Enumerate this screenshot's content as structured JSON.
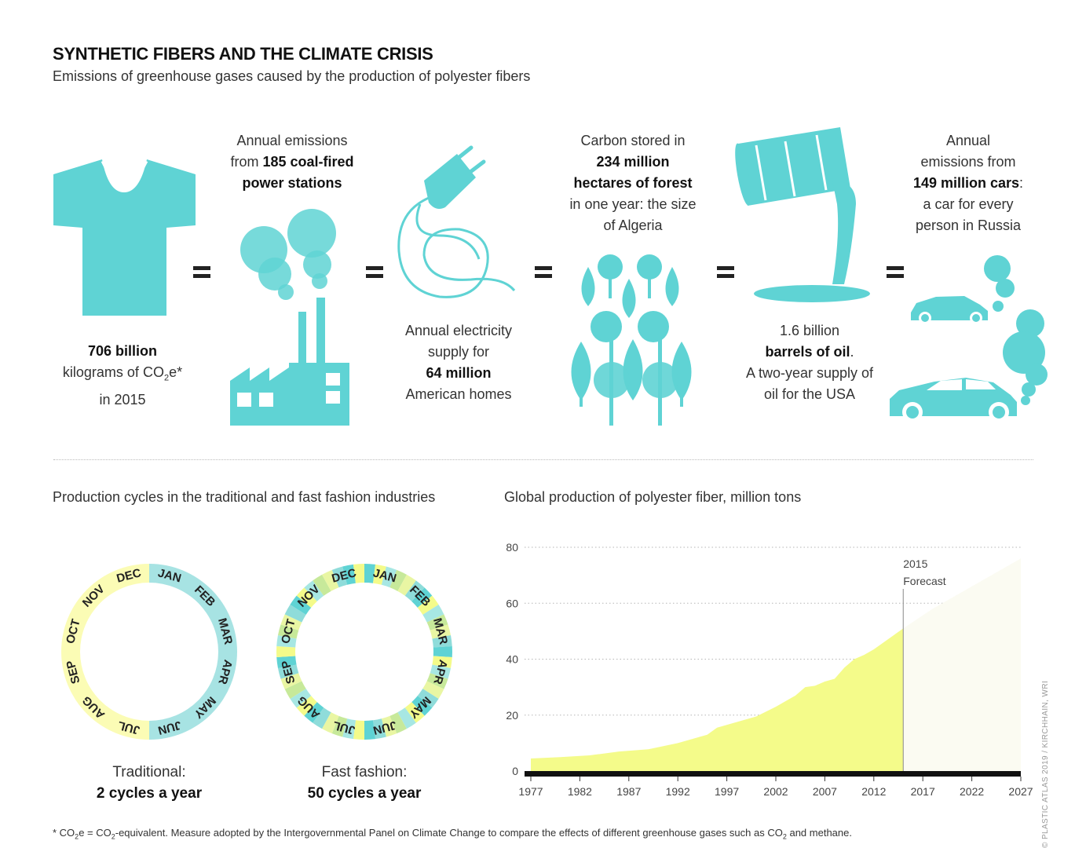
{
  "title": "SYNTHETIC FIBERS AND THE CLIMATE CRISIS",
  "subtitle": "Emissions of greenhouse gases caused by the production of polyester fibers",
  "colors": {
    "teal": "#5fd3d4",
    "yellow": "#f4fb8a",
    "forecast_fill": "#fbfbf2"
  },
  "equivalences": {
    "tshirt": {
      "l1_bold": "706 billion",
      "l2a": "kilograms of CO",
      "l2_sub": "2",
      "l2b": "e*",
      "l3": "in 2015"
    },
    "power": {
      "l1": "Annual emissions",
      "l2a": "from ",
      "l2_bold": "185 coal-fired",
      "l3_bold": "power stations"
    },
    "electricity": {
      "l1": "Annual electricity",
      "l2": "supply for",
      "l3_bold": "64 million",
      "l4": "American homes"
    },
    "forest": {
      "l1": "Carbon stored in",
      "l2_bold": "234 million",
      "l3_bold": "hectares of forest",
      "l4": "in one year: the size",
      "l5": "of Algeria"
    },
    "oil": {
      "l1": "1.6 billion",
      "l2_bold": "barrels of oil",
      "l2_tail": ".",
      "l3": "A two-year supply of",
      "l4": "oil for the USA"
    },
    "cars": {
      "l1": "Annual",
      "l2": "emissions from",
      "l3_bold": "149 million cars",
      "l3_tail": ":",
      "l4": "a car for every",
      "l5": "person in Russia"
    }
  },
  "cycles": {
    "heading": "Production cycles in the traditional and fast fashion industries",
    "months": [
      "JAN",
      "FEB",
      "MAR",
      "APR",
      "MAY",
      "JUN",
      "JUL",
      "AUG",
      "SEP",
      "OCT",
      "NOV",
      "DEC"
    ],
    "traditional": {
      "label": "Traditional:",
      "value": "2 cycles a year",
      "cycles": 2
    },
    "fast": {
      "label": "Fast fashion:",
      "value": "50 cycles a year",
      "cycles": 50
    }
  },
  "chart_data": {
    "type": "area",
    "title": "Global production of polyester fiber, million tons",
    "x_ticks": [
      1977,
      1982,
      1987,
      1992,
      1997,
      2002,
      2007,
      2012,
      2017,
      2022,
      2027
    ],
    "y_ticks": [
      0,
      20,
      40,
      60,
      80
    ],
    "xlim": [
      1977,
      2027
    ],
    "ylim": [
      0,
      80
    ],
    "grid": "horizontal dotted",
    "annotation": {
      "x": 2015,
      "line1": "2015",
      "line2": "Forecast"
    },
    "series": [
      {
        "values_x": [
          1977,
          1980,
          1983,
          1986,
          1989,
          1992,
          1995,
          1996,
          1998,
          2000,
          2002,
          2004,
          2005,
          2006,
          2007,
          2008,
          2009,
          2010,
          2011,
          2012,
          2013,
          2014,
          2015
        ],
        "values_y": [
          4.5,
          5,
          5.6,
          7,
          7.8,
          10,
          13,
          15.5,
          17.5,
          19.5,
          23,
          27,
          30,
          30.5,
          32,
          33,
          37,
          40,
          41.5,
          43.5,
          46,
          48.5,
          51
        ]
      },
      {
        "forecast": true,
        "values_x": [
          2015,
          2018,
          2021,
          2024,
          2027
        ],
        "values_y": [
          51,
          58,
          64,
          70,
          76
        ]
      }
    ]
  },
  "footnote": {
    "a": "* CO",
    "a_sub": "2",
    "b": "e = CO",
    "b_sub": "2",
    "c": "-equivalent. Measure adopted by the Intergovernmental Panel on Climate Change to compare the effects of different greenhouse gases such as CO",
    "c_sub": "2",
    "d": " and methane."
  },
  "credit": "© PLASTIC ATLAS 2019 / KIRCHHAIN, WRI"
}
